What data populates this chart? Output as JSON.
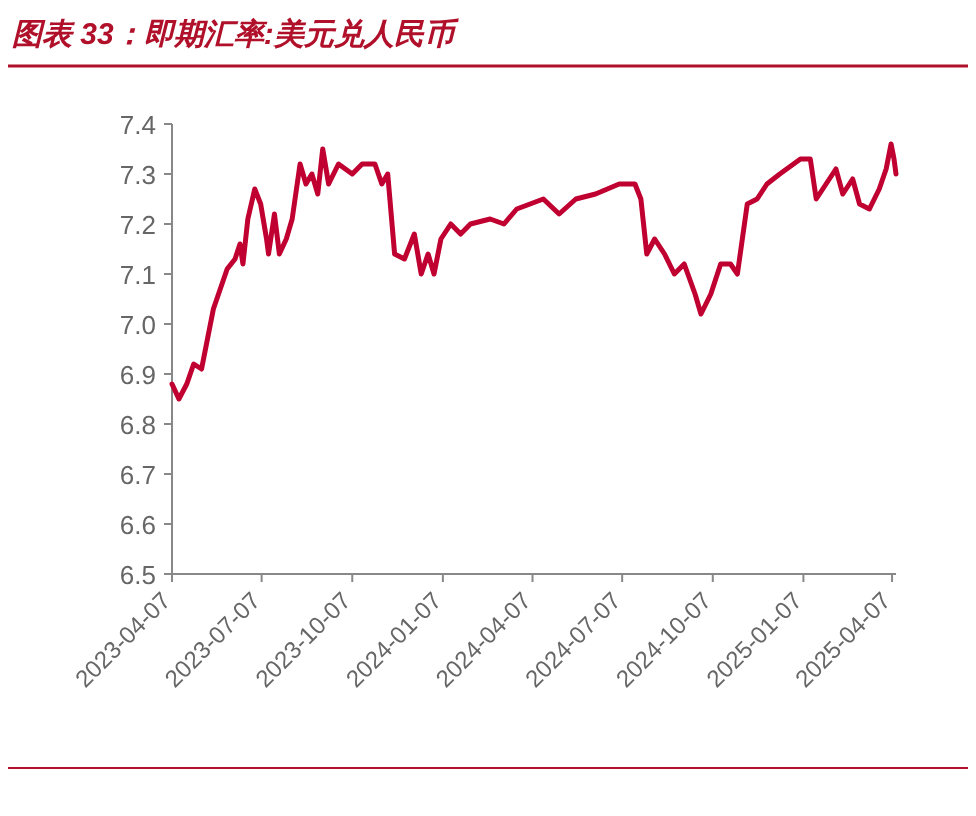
{
  "chart_data": {
    "type": "line",
    "title": "图表 33：即期汇率:美元兑人民币",
    "series": [
      {
        "color": "#c00030",
        "x": [
          "2023-04-07",
          "2023-04-14",
          "2023-04-22",
          "2023-04-29",
          "2023-05-07",
          "2023-05-12",
          "2023-05-19",
          "2023-05-26",
          "2023-06-02",
          "2023-06-10",
          "2023-06-15",
          "2023-06-18",
          "2023-06-23",
          "2023-06-30",
          "2023-07-06",
          "2023-07-12",
          "2023-07-14",
          "2023-07-20",
          "2023-07-25",
          "2023-08-01",
          "2023-08-07",
          "2023-08-15",
          "2023-08-21",
          "2023-08-27",
          "2023-09-02",
          "2023-09-07",
          "2023-09-13",
          "2023-09-23",
          "2023-10-07",
          "2023-10-17",
          "2023-10-30",
          "2023-11-06",
          "2023-11-12",
          "2023-11-19",
          "2023-11-29",
          "2023-12-09",
          "2023-12-16",
          "2023-12-23",
          "2023-12-29",
          "2024-01-05",
          "2024-01-15",
          "2024-01-25",
          "2024-02-04",
          "2024-02-24",
          "2024-03-09",
          "2024-03-22",
          "2024-04-18",
          "2024-05-04",
          "2024-05-21",
          "2024-06-10",
          "2024-07-04",
          "2024-07-20",
          "2024-07-26",
          "2024-08-01",
          "2024-08-09",
          "2024-08-19",
          "2024-08-29",
          "2024-09-08",
          "2024-09-19",
          "2024-09-25",
          "2024-10-05",
          "2024-10-15",
          "2024-10-25",
          "2024-11-01",
          "2024-11-11",
          "2024-11-21",
          "2024-12-01",
          "2024-12-14",
          "2025-01-04",
          "2025-01-14",
          "2025-01-20",
          "2025-01-30",
          "2025-02-09",
          "2025-02-16",
          "2025-02-26",
          "2025-03-05",
          "2025-03-15",
          "2025-03-25",
          "2025-04-01",
          "2025-04-06",
          "2025-04-09",
          "2025-04-11"
        ],
        "values": [
          6.88,
          6.85,
          6.88,
          6.92,
          6.91,
          6.96,
          7.03,
          7.07,
          7.11,
          7.13,
          7.16,
          7.12,
          7.21,
          7.27,
          7.24,
          7.17,
          7.14,
          7.22,
          7.14,
          7.17,
          7.21,
          7.32,
          7.28,
          7.3,
          7.26,
          7.35,
          7.28,
          7.32,
          7.3,
          7.32,
          7.32,
          7.28,
          7.3,
          7.14,
          7.13,
          7.18,
          7.1,
          7.14,
          7.1,
          7.17,
          7.2,
          7.18,
          7.2,
          7.21,
          7.2,
          7.23,
          7.25,
          7.22,
          7.25,
          7.26,
          7.28,
          7.28,
          7.25,
          7.14,
          7.17,
          7.14,
          7.1,
          7.12,
          7.06,
          7.02,
          7.06,
          7.12,
          7.12,
          7.1,
          7.24,
          7.25,
          7.28,
          7.3,
          7.33,
          7.33,
          7.25,
          7.28,
          7.31,
          7.26,
          7.29,
          7.24,
          7.23,
          7.27,
          7.31,
          7.36,
          7.33,
          7.3
        ]
      }
    ],
    "xlim": [
      "2023-04-07",
      "2025-04-11"
    ],
    "xticks": [
      "2023-04-07",
      "2023-07-07",
      "2023-10-07",
      "2024-01-07",
      "2024-04-07",
      "2024-07-07",
      "2024-10-07",
      "2025-01-07",
      "2025-04-07"
    ],
    "ylim": [
      6.5,
      7.4
    ],
    "yticks": [
      6.5,
      6.6,
      6.7,
      6.8,
      6.9,
      {
        "value": 7,
        "label": "7.0"
      },
      7.1,
      7.2,
      7.3,
      7.4
    ],
    "marker": "none",
    "line_style": "solid"
  }
}
